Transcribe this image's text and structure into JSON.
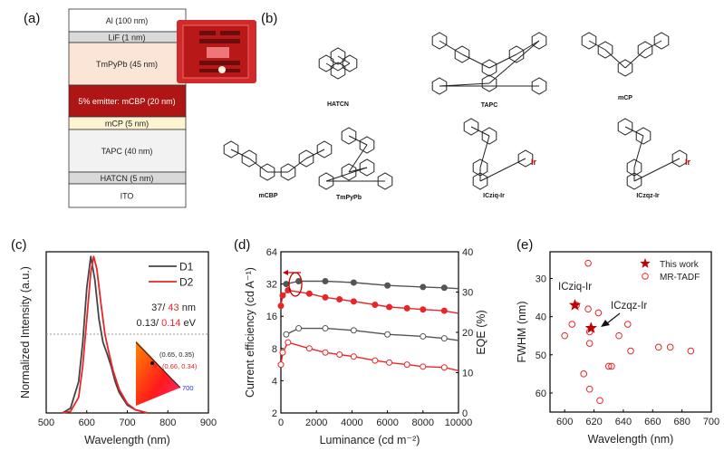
{
  "panels": {
    "a": {
      "label": "(a)",
      "layers": [
        {
          "name": "Al (100 nm)",
          "color": "#ffffff",
          "text_color": "#222222"
        },
        {
          "name": "LiF (1 nm)",
          "color": "#d9d9d9",
          "text_color": "#222222"
        },
        {
          "name": "TmPyPb (45 nm)",
          "color": "#fbe5d6",
          "text_color": "#222222"
        },
        {
          "name": "5% emitter: mCBP (20 nm)",
          "color": "#b01515",
          "text_color": "#ffffff"
        },
        {
          "name": "mCP (5 nm)",
          "color": "#fdf5d2",
          "text_color": "#222222"
        },
        {
          "name": "TAPC (40 nm)",
          "color": "#f2f2f2",
          "text_color": "#222222"
        },
        {
          "name": "HATCN (5 nm)",
          "color": "#d9d9d9",
          "text_color": "#222222"
        },
        {
          "name": "ITO",
          "color": "#ffffff",
          "text_color": "#222222"
        }
      ]
    },
    "b": {
      "label": "(b)",
      "molecules": [
        "HATCN",
        "TAPC",
        "mCP",
        "mCBP",
        "TmPyPb",
        "ICziq-Ir",
        "ICzqz-Ir"
      ]
    }
  },
  "chart_data": [
    {
      "panel": "(c)",
      "type": "line",
      "xlabel": "Wavelength (nm)",
      "ylabel": "Normalized Intensity (a.u.)",
      "xlim": [
        500,
        900
      ],
      "xticks": [
        500,
        600,
        700,
        800,
        900
      ],
      "ylim": [
        0,
        1.03
      ],
      "legend_position": "top-right",
      "series": [
        {
          "name": "D1",
          "color": "#444444",
          "x": [
            540,
            560,
            580,
            590,
            600,
            610,
            620,
            630,
            640,
            650,
            660,
            670,
            680,
            700,
            720,
            750
          ],
          "y": [
            0,
            0.03,
            0.2,
            0.45,
            0.8,
            1.0,
            0.85,
            0.6,
            0.45,
            0.38,
            0.3,
            0.2,
            0.13,
            0.05,
            0.02,
            0
          ]
        },
        {
          "name": "D2",
          "color": "#e8262a",
          "x": [
            540,
            560,
            580,
            590,
            600,
            610,
            617,
            625,
            635,
            645,
            655,
            665,
            680,
            700,
            720,
            750
          ],
          "y": [
            0,
            0.01,
            0.1,
            0.3,
            0.6,
            0.9,
            1.0,
            0.92,
            0.7,
            0.5,
            0.38,
            0.27,
            0.15,
            0.06,
            0.02,
            0
          ]
        }
      ],
      "annotations": {
        "fwhm": {
          "d1": "37/",
          "d2": " 43",
          "unit": " nm"
        },
        "energy": {
          "d1": "0.13/",
          "d2": " 0.14",
          "unit": " eV"
        },
        "cie_d1": "(0.65, 0.35)",
        "cie_d2": "(0.66, 0.34)",
        "cie_wavelength": "700"
      }
    },
    {
      "panel": "(d)",
      "type": "line",
      "xlabel": "Luminance (cd m⁻²)",
      "ylabel_left": "Current efficiency (cd A⁻¹)",
      "ylabel_right": "EQE (%)",
      "xlim": [
        0,
        10000
      ],
      "xticks": [
        0,
        2000,
        4000,
        6000,
        8000,
        10000
      ],
      "ylim_left": [
        2,
        64
      ],
      "yscale_left": "log2",
      "yticks_left": [
        2,
        4,
        8,
        16,
        32,
        64
      ],
      "ylim_right": [
        0,
        40
      ],
      "yticks_right": [
        0,
        10,
        20,
        30,
        40
      ],
      "series": [
        {
          "axis": "left",
          "marker": "filled",
          "color": "#555555",
          "x": [
            300,
            1000,
            2500,
            4100,
            6000,
            8000,
            9200,
            10000
          ],
          "y": [
            32,
            34,
            34,
            33,
            31,
            30,
            29.5,
            29
          ]
        },
        {
          "axis": "left",
          "marker": "filled",
          "color": "#e8262a",
          "x": [
            0,
            100,
            400,
            1600,
            2500,
            3300,
            4100,
            5300,
            6100,
            7100,
            8000,
            9200,
            10000
          ],
          "y": [
            20,
            25,
            28,
            26,
            24,
            23,
            22,
            20.5,
            19.5,
            19,
            18.5,
            18,
            17
          ]
        },
        {
          "axis": "right",
          "marker": "open",
          "color": "#555555",
          "x": [
            300,
            1000,
            2500,
            4100,
            6000,
            8000,
            9200,
            10000
          ],
          "y": [
            19.5,
            21,
            21,
            20.5,
            19.5,
            19,
            18.5,
            18
          ]
        },
        {
          "axis": "right",
          "marker": "open",
          "color": "#e8262a",
          "x": [
            0,
            100,
            400,
            1600,
            2500,
            3300,
            4100,
            5300,
            6100,
            7100,
            8000,
            9200,
            10000
          ],
          "y": [
            12,
            15,
            17.5,
            16,
            15,
            14.5,
            14,
            13,
            12.5,
            12,
            11.5,
            11.3,
            10.5
          ]
        }
      ]
    },
    {
      "panel": "(e)",
      "type": "scatter",
      "xlabel": "Wavelength (nm)",
      "ylabel": "FWHM (nm)",
      "xlim": [
        590,
        700
      ],
      "xticks": [
        600,
        620,
        640,
        660,
        680,
        700
      ],
      "ylim": [
        65,
        23
      ],
      "y_inverted": true,
      "yticks": [
        30,
        40,
        50,
        60
      ],
      "legend_position": "top-right",
      "series": [
        {
          "name": "This work",
          "marker": "star",
          "color": "#c00000",
          "x": [
            607,
            618
          ],
          "y": [
            37,
            43
          ],
          "labels": [
            "ICziq-Ir",
            "ICzqz-Ir"
          ]
        },
        {
          "name": "MR-TADF",
          "marker": "open-circle",
          "color": "#e8262a",
          "x": [
            616,
            608,
            616,
            623,
            605,
            643,
            617,
            600,
            637,
            617,
            645,
            664,
            672,
            686,
            630,
            632,
            613,
            617,
            624
          ],
          "y": [
            26,
            37,
            38,
            39,
            42,
            42,
            44,
            45,
            45,
            47,
            49,
            48,
            48,
            49,
            53,
            53,
            55,
            59,
            62
          ]
        }
      ]
    }
  ]
}
